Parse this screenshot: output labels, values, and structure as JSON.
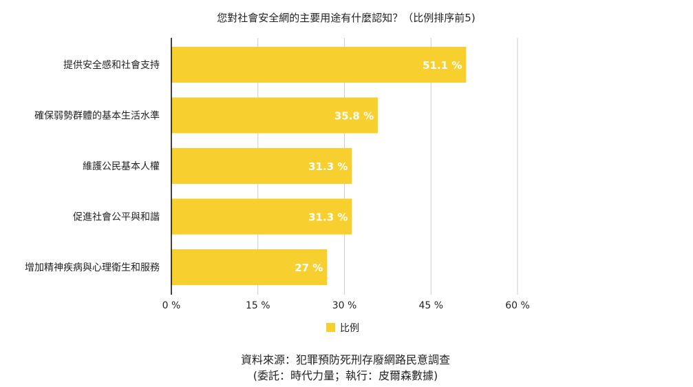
{
  "chart_data": {
    "type": "bar",
    "orientation": "horizontal",
    "title": "您對社會安全網的主要用途有什麼認知？（比例排序前5)",
    "categories": [
      "提供安全感和社會支持",
      "確保弱勢群體的基本生活水準",
      "維護公民基本人權",
      "促進社會公平與和諧",
      "增加精神疾病與心理衛生和服務"
    ],
    "series": [
      {
        "name": "比例",
        "values": [
          51.1,
          35.8,
          31.3,
          31.3,
          27
        ],
        "labels": [
          "51.1 %",
          "35.8 %",
          "31.3 %",
          "31.3 %",
          "27 %"
        ],
        "color": "#F7D02F"
      }
    ],
    "xlim": [
      0,
      60
    ],
    "xticks": [
      0,
      15,
      30,
      45,
      60
    ],
    "xtick_labels": [
      "0 %",
      "15 %",
      "30 %",
      "45 %",
      "60 %"
    ],
    "grid": true,
    "legend_position": "bottom",
    "gridline_color": "#cccccc",
    "axis_color": "#000000"
  },
  "source": {
    "line1": "資料來源：犯罪預防死刑存廢網路民意調查",
    "line2": "(委託：時代力量；執行：皮爾森數據)"
  }
}
